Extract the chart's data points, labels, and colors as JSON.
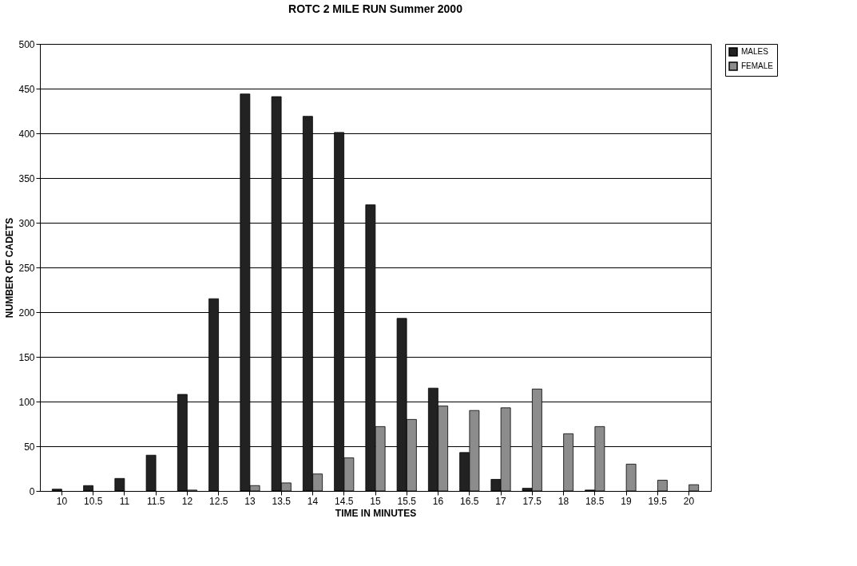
{
  "chart_data": {
    "type": "bar",
    "title": "ROTC 2 MILE RUN Summer 2000",
    "xlabel": "TIME IN MINUTES",
    "ylabel": "NUMBER  OF CADETS",
    "categories": [
      "10",
      "10.5",
      "11",
      "11.5",
      "12",
      "12.5",
      "13",
      "13.5",
      "14",
      "14.5",
      "15",
      "15.5",
      "16",
      "16.5",
      "17",
      "17.5",
      "18",
      "18.5",
      "19",
      "19.5",
      "20"
    ],
    "series": [
      {
        "name": "MALES",
        "color": "#222222",
        "values": [
          2,
          6,
          14,
          40,
          108,
          215,
          444,
          441,
          419,
          401,
          320,
          193,
          115,
          43,
          13,
          3,
          0,
          1,
          0,
          0,
          0
        ]
      },
      {
        "name": "FEMALE",
        "color": "#8c8c8c",
        "values": [
          0,
          0,
          0,
          0,
          1,
          0,
          6,
          9,
          19,
          37,
          72,
          80,
          95,
          90,
          93,
          114,
          64,
          72,
          30,
          12,
          7
        ]
      }
    ],
    "ylim": [
      0,
      500
    ],
    "yticks": [
      0,
      50,
      100,
      150,
      200,
      250,
      300,
      350,
      400,
      450,
      500
    ],
    "grid": "y",
    "legend": "right"
  }
}
